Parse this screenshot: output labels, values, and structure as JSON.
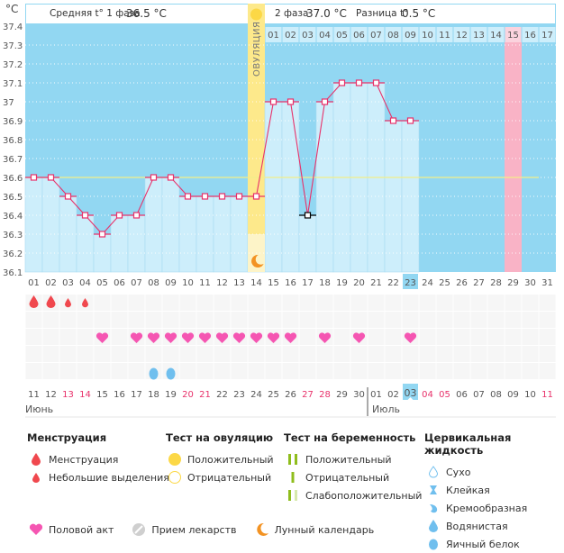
{
  "chart_data": {
    "type": "line",
    "title": "",
    "ylabel": "°C",
    "ylim": [
      36.1,
      37.4
    ],
    "y_ticks": [
      "37.4",
      "37.3",
      "37.2",
      "37.1",
      "37",
      "36.9",
      "36.8",
      "36.7",
      "36.6",
      "36.5",
      "36.4",
      "36.3",
      "36.2",
      "36.1"
    ],
    "cycle_days": [
      "01",
      "02",
      "03",
      "04",
      "05",
      "06",
      "07",
      "08",
      "09",
      "10",
      "11",
      "12",
      "13",
      "14",
      "15",
      "16",
      "17",
      "18",
      "19",
      "20",
      "21",
      "22",
      "23",
      "24",
      "25",
      "26",
      "27",
      "28",
      "29",
      "30",
      "31"
    ],
    "luteal_day_labels": [
      "01",
      "02",
      "03",
      "04",
      "05",
      "06",
      "07",
      "08",
      "09",
      "10",
      "11",
      "12",
      "13",
      "14",
      "15",
      "16",
      "17"
    ],
    "temperatures": [
      36.6,
      36.6,
      36.5,
      36.4,
      36.3,
      36.4,
      36.4,
      36.6,
      36.6,
      36.5,
      36.5,
      36.5,
      36.5,
      36.5,
      37.0,
      37.0,
      36.4,
      37.0,
      37.1,
      37.1,
      37.1,
      36.9,
      36.9
    ],
    "excluded_points": [
      17
    ],
    "coverline": 36.6,
    "ovulation_day": 14,
    "ovulation_label": "ОВУЛЯЦИЯ",
    "highlighted_luteal_day": "15",
    "highlighted_cycle_day": 29,
    "current_day": 23,
    "grid": true
  },
  "summary": {
    "phase1_label": "Средняя t° 1 фаза",
    "phase1_value": "36.5 °C",
    "phase2_label": "2 фаза",
    "phase2_value": "37.0 °C",
    "diff_label": "Разница t°",
    "diff_value": "0.5 °C"
  },
  "calendar": {
    "dates": [
      "11",
      "12",
      "13",
      "14",
      "15",
      "16",
      "17",
      "18",
      "19",
      "20",
      "21",
      "22",
      "23",
      "24",
      "25",
      "26",
      "27",
      "28",
      "29",
      "30",
      "01",
      "02",
      "03",
      "04",
      "05",
      "06",
      "07",
      "08",
      "09",
      "10",
      "11"
    ],
    "weekend_indices": [
      2,
      3,
      9,
      10,
      16,
      17,
      23,
      24,
      30
    ],
    "current_index": 22,
    "month_start_label": "Июнь",
    "month_second_label": "Июль",
    "month_break_index": 20,
    "menstruation": {
      "large": [
        1,
        2
      ],
      "small": [
        3,
        4
      ]
    },
    "intercourse_days": [
      5,
      7,
      8,
      9,
      10,
      11,
      12,
      13,
      14,
      15,
      16,
      18,
      20,
      23
    ],
    "egg_white_days": [
      8,
      9
    ]
  },
  "legend": {
    "menstruation": {
      "title": "Менструация",
      "items": [
        "Менструация",
        "Небольшие выделения"
      ]
    },
    "ovulation_test": {
      "title": "Тест на овуляцию",
      "items": [
        "Положительный",
        "Отрицательный"
      ]
    },
    "pregnancy_test": {
      "title": "Тест на беременность",
      "items": [
        "Положительный",
        "Отрицательный",
        "Слабоположительный"
      ]
    },
    "cervical_fluid": {
      "title": "Цервикальная жидкость",
      "items": [
        "Сухо",
        "Клейкая",
        "Кремообразная",
        "Водянистая",
        "Яичный белок"
      ]
    },
    "bottom": [
      "Половой акт",
      "Прием лекарств",
      "Лунный календарь"
    ]
  },
  "colors": {
    "sky": "#92d7f2",
    "bar": "#cdeefb",
    "header_cell": "#cdeefb",
    "line": "#e8316a",
    "coverline": "#f3ee8a",
    "ovulation": "#fde98b",
    "highlight_pink": "#f9b3c6",
    "heart": "#f556b2",
    "blood": "#f0484e",
    "egg": "#70bfee",
    "weekend": "#e8316a",
    "moon": "#f39323"
  }
}
